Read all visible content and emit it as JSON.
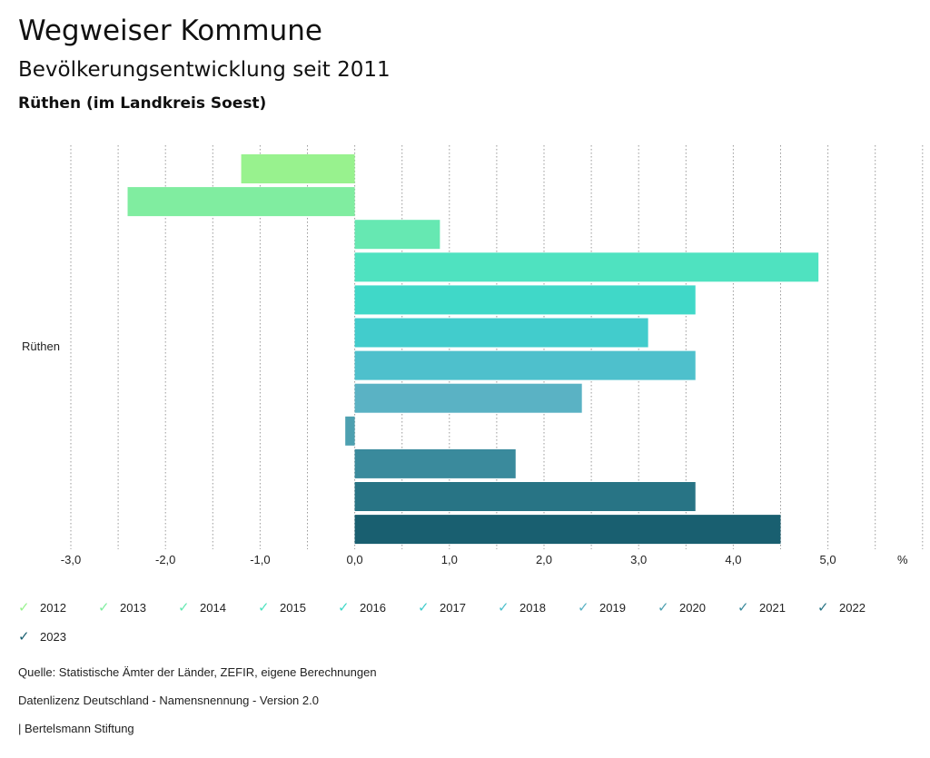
{
  "header": {
    "title": "Wegweiser Kommune",
    "subtitle": "Bevölkerungsentwicklung seit 2011",
    "region": "Rüthen (im Landkreis Soest)"
  },
  "chart_data": {
    "type": "bar",
    "orientation": "horizontal",
    "category_label": "Rüthen",
    "unit_label": "%",
    "xlim": [
      -3.0,
      6.0
    ],
    "ticks": [
      "-3,0",
      "-2,0",
      "-1,0",
      "0,0",
      "1,0",
      "2,0",
      "3,0",
      "4,0",
      "5,0"
    ],
    "tick_values": [
      -3,
      -2,
      -1,
      0,
      1,
      2,
      3,
      4,
      5
    ],
    "series": [
      {
        "name": "2012",
        "value": -1.2,
        "color": "#98f28e"
      },
      {
        "name": "2013",
        "value": -2.4,
        "color": "#80eda0"
      },
      {
        "name": "2014",
        "value": 0.9,
        "color": "#66e8b2"
      },
      {
        "name": "2015",
        "value": 4.9,
        "color": "#4fe2c0"
      },
      {
        "name": "2016",
        "value": 3.6,
        "color": "#40d8c8"
      },
      {
        "name": "2017",
        "value": 3.1,
        "color": "#42cccc"
      },
      {
        "name": "2018",
        "value": 3.6,
        "color": "#4ec0cc"
      },
      {
        "name": "2019",
        "value": 2.4,
        "color": "#5ab2c4"
      },
      {
        "name": "2020",
        "value": -0.1,
        "color": "#4da0b0"
      },
      {
        "name": "2021",
        "value": 1.7,
        "color": "#3a8a9c"
      },
      {
        "name": "2022",
        "value": 3.6,
        "color": "#287485"
      },
      {
        "name": "2023",
        "value": 4.5,
        "color": "#195f70"
      }
    ]
  },
  "footer": {
    "source": "Quelle: Statistische Ämter der Länder, ZEFIR, eigene Berechnungen",
    "license": "Datenlizenz Deutschland - Namensnennung - Version 2.0",
    "brand": "| Bertelsmann Stiftung"
  }
}
